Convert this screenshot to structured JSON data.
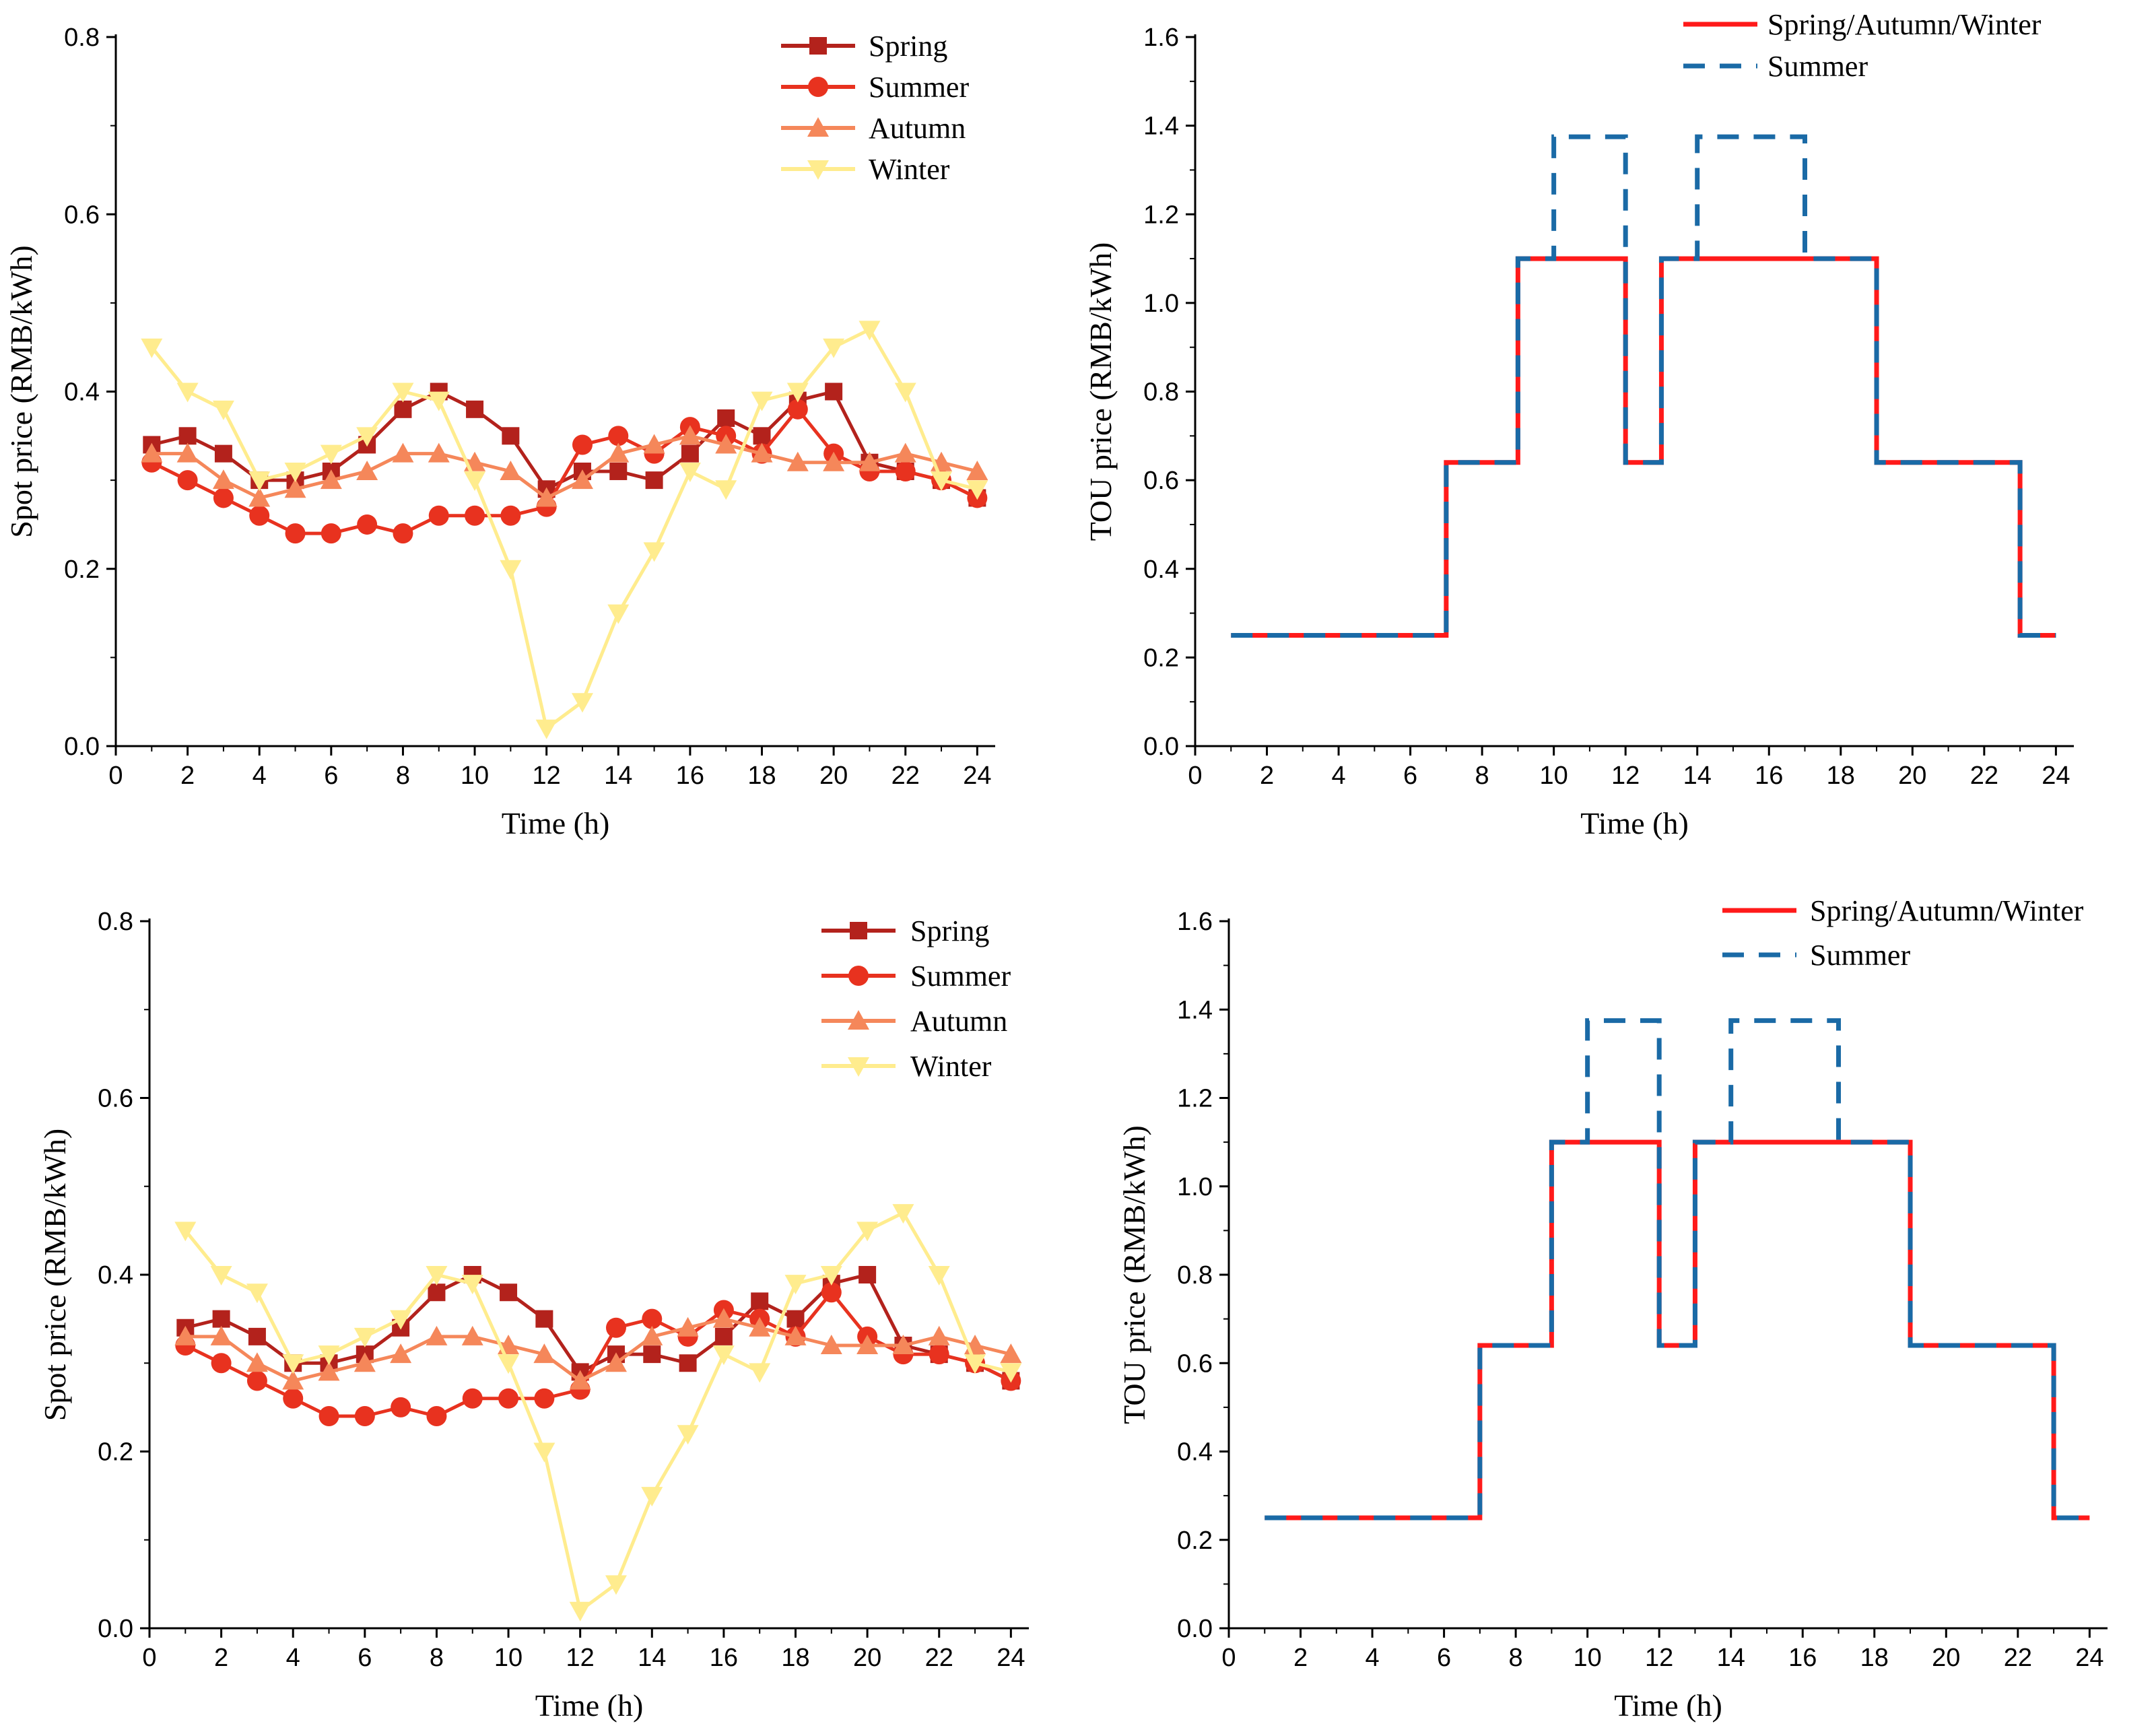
{
  "colors": {
    "spring": "#b3221c",
    "summer": "#e8321f",
    "autumn": "#f5875a",
    "winter": "#ffec8e",
    "tou_flat": "#ff1a1a",
    "tou_summer": "#1a6aa6"
  },
  "chart_data": [
    {
      "type": "line",
      "id": "spot-top",
      "xlabel": "Time (h)",
      "ylabel": "Spot price (RMB/kWh)",
      "xlim": [
        0,
        24.5
      ],
      "ylim": [
        0,
        0.8
      ],
      "xticks": [
        "0",
        "2",
        "4",
        "6",
        "8",
        "10",
        "12",
        "14",
        "16",
        "18",
        "20",
        "22",
        "24"
      ],
      "yticks": [
        "0.0",
        "0.2",
        "0.4",
        "0.6",
        "0.8"
      ],
      "legend_position": "top-right",
      "x": [
        1,
        2,
        3,
        4,
        5,
        6,
        7,
        8,
        9,
        10,
        11,
        12,
        13,
        14,
        15,
        16,
        17,
        18,
        19,
        20,
        21,
        22,
        23,
        24
      ],
      "series": [
        {
          "name": "Spring",
          "marker": "square",
          "values": [
            0.34,
            0.35,
            0.33,
            0.3,
            0.3,
            0.31,
            0.34,
            0.38,
            0.4,
            0.38,
            0.35,
            0.29,
            0.31,
            0.31,
            0.3,
            0.33,
            0.37,
            0.35,
            0.39,
            0.4,
            0.32,
            0.31,
            0.3,
            0.28
          ]
        },
        {
          "name": "Summer",
          "marker": "circle",
          "values": [
            0.32,
            0.3,
            0.28,
            0.26,
            0.24,
            0.24,
            0.25,
            0.24,
            0.26,
            0.26,
            0.26,
            0.27,
            0.34,
            0.35,
            0.33,
            0.36,
            0.35,
            0.33,
            0.38,
            0.33,
            0.31,
            0.31,
            0.3,
            0.28
          ]
        },
        {
          "name": "Autumn",
          "marker": "triangle-up",
          "values": [
            0.33,
            0.33,
            0.3,
            0.28,
            0.29,
            0.3,
            0.31,
            0.33,
            0.33,
            0.32,
            0.31,
            0.28,
            0.3,
            0.33,
            0.34,
            0.35,
            0.34,
            0.33,
            0.32,
            0.32,
            0.32,
            0.33,
            0.32,
            0.31
          ]
        },
        {
          "name": "Winter",
          "marker": "triangle-down",
          "values": [
            0.45,
            0.4,
            0.38,
            0.3,
            0.31,
            0.33,
            0.35,
            0.4,
            0.39,
            0.3,
            0.2,
            0.02,
            0.05,
            0.15,
            0.22,
            0.31,
            0.29,
            0.39,
            0.4,
            0.45,
            0.47,
            0.4,
            0.3,
            0.29
          ]
        }
      ]
    },
    {
      "type": "line",
      "id": "tou-top",
      "xlabel": "Time (h)",
      "ylabel": "TOU price (RMB/kWh)",
      "xlim": [
        0,
        24.5
      ],
      "ylim": [
        0,
        1.6
      ],
      "xticks": [
        "0",
        "2",
        "4",
        "6",
        "8",
        "10",
        "12",
        "14",
        "16",
        "18",
        "20",
        "22",
        "24"
      ],
      "yticks": [
        "0.0",
        "0.2",
        "0.4",
        "0.6",
        "0.8",
        "1.0",
        "1.2",
        "1.4",
        "1.6"
      ],
      "legend_position": "top-right",
      "series": [
        {
          "name": "Spring/Autumn/Winter",
          "style": "solid-step",
          "x": [
            1,
            7,
            9,
            12,
            13,
            19,
            23,
            24
          ],
          "values": [
            0.25,
            0.64,
            1.1,
            0.64,
            1.1,
            0.64,
            0.25,
            0.25
          ]
        },
        {
          "name": "Summer",
          "style": "dashed-step",
          "x": [
            1,
            7,
            9,
            10,
            12,
            13,
            14,
            17,
            19,
            23,
            24
          ],
          "values": [
            0.25,
            0.64,
            1.1,
            1.375,
            0.64,
            1.1,
            1.375,
            1.1,
            0.64,
            0.25,
            0.25
          ]
        }
      ]
    },
    {
      "type": "line",
      "id": "spot-bottom",
      "xlabel": "Time (h)",
      "ylabel": "Spot price (RMB/kWh)",
      "xlim": [
        0,
        24.5
      ],
      "ylim": [
        0,
        0.8
      ],
      "xticks": [
        "0",
        "2",
        "4",
        "6",
        "8",
        "10",
        "12",
        "14",
        "16",
        "18",
        "20",
        "22",
        "24"
      ],
      "yticks": [
        "0.0",
        "0.2",
        "0.4",
        "0.6",
        "0.8"
      ],
      "legend_position": "top-right",
      "x": [
        1,
        2,
        3,
        4,
        5,
        6,
        7,
        8,
        9,
        10,
        11,
        12,
        13,
        14,
        15,
        16,
        17,
        18,
        19,
        20,
        21,
        22,
        23,
        24
      ],
      "series": [
        {
          "name": "Spring",
          "marker": "square",
          "values": [
            0.34,
            0.35,
            0.33,
            0.3,
            0.3,
            0.31,
            0.34,
            0.38,
            0.4,
            0.38,
            0.35,
            0.29,
            0.31,
            0.31,
            0.3,
            0.33,
            0.37,
            0.35,
            0.39,
            0.4,
            0.32,
            0.31,
            0.3,
            0.28
          ]
        },
        {
          "name": "Summer",
          "marker": "circle",
          "values": [
            0.32,
            0.3,
            0.28,
            0.26,
            0.24,
            0.24,
            0.25,
            0.24,
            0.26,
            0.26,
            0.26,
            0.27,
            0.34,
            0.35,
            0.33,
            0.36,
            0.35,
            0.33,
            0.38,
            0.33,
            0.31,
            0.31,
            0.3,
            0.28
          ]
        },
        {
          "name": "Autumn",
          "marker": "triangle-up",
          "values": [
            0.33,
            0.33,
            0.3,
            0.28,
            0.29,
            0.3,
            0.31,
            0.33,
            0.33,
            0.32,
            0.31,
            0.28,
            0.3,
            0.33,
            0.34,
            0.35,
            0.34,
            0.33,
            0.32,
            0.32,
            0.32,
            0.33,
            0.32,
            0.31
          ]
        },
        {
          "name": "Winter",
          "marker": "triangle-down",
          "values": [
            0.45,
            0.4,
            0.38,
            0.3,
            0.31,
            0.33,
            0.35,
            0.4,
            0.39,
            0.3,
            0.2,
            0.02,
            0.05,
            0.15,
            0.22,
            0.31,
            0.29,
            0.39,
            0.4,
            0.45,
            0.47,
            0.4,
            0.3,
            0.29
          ]
        }
      ]
    },
    {
      "type": "line",
      "id": "tou-bottom",
      "xlabel": "Time (h)",
      "ylabel": "TOU price (RMB/kWh)",
      "xlim": [
        0,
        24.5
      ],
      "ylim": [
        0,
        1.6
      ],
      "xticks": [
        "0",
        "2",
        "4",
        "6",
        "8",
        "10",
        "12",
        "14",
        "16",
        "18",
        "20",
        "22",
        "24"
      ],
      "yticks": [
        "0.0",
        "0.2",
        "0.4",
        "0.6",
        "0.8",
        "1.0",
        "1.2",
        "1.4",
        "1.6"
      ],
      "legend_position": "top-right",
      "series": [
        {
          "name": "Spring/Autumn/Winter",
          "style": "solid-step",
          "x": [
            1,
            7,
            9,
            12,
            13,
            19,
            23,
            24
          ],
          "values": [
            0.25,
            0.64,
            1.1,
            0.64,
            1.1,
            0.64,
            0.25,
            0.25
          ]
        },
        {
          "name": "Summer",
          "style": "dashed-step",
          "x": [
            1,
            7,
            9,
            10,
            12,
            13,
            14,
            17,
            19,
            23,
            24
          ],
          "values": [
            0.25,
            0.64,
            1.1,
            1.375,
            0.64,
            1.1,
            1.375,
            1.1,
            0.64,
            0.25,
            0.25
          ]
        }
      ]
    }
  ]
}
